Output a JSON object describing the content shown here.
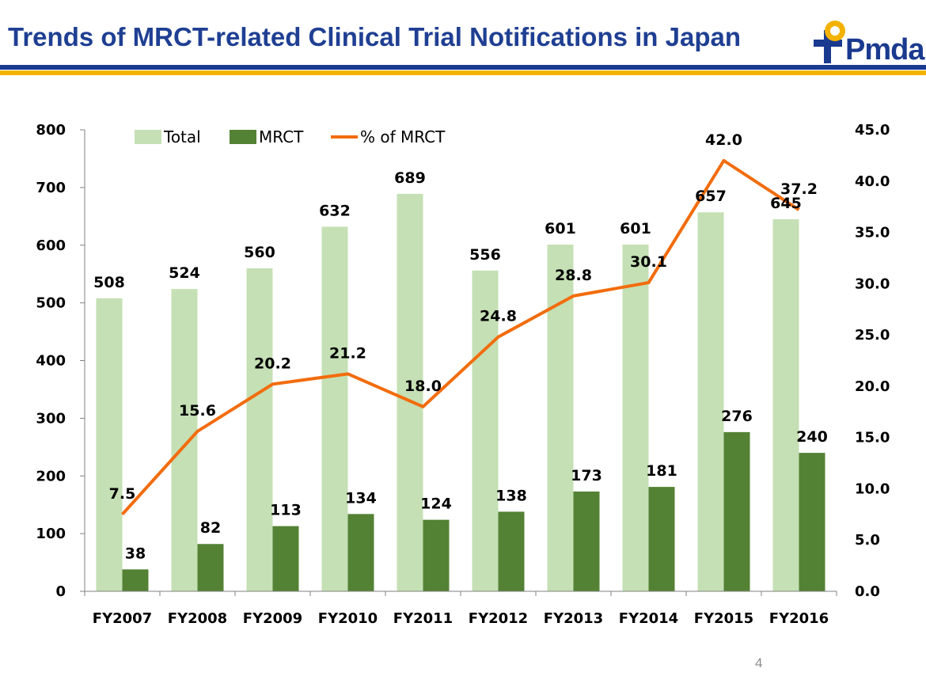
{
  "slide": {
    "title": "Trends of MRCT-related Clinical Trial Notifications in Japan",
    "page_number": "4",
    "logo_text": "Pmda"
  },
  "colors": {
    "title": "#1f3f93",
    "rule_blue": "#1a3a8f",
    "rule_yellow": "#f4b200",
    "total": "#c5e0b4",
    "mrct": "#548235",
    "pct": "#f26c0d"
  },
  "chart_data": {
    "type": "bar",
    "categories": [
      "FY2007",
      "FY2008",
      "FY2009",
      "FY2010",
      "FY2011",
      "FY2012",
      "FY2013",
      "FY2014",
      "FY2015",
      "FY2016"
    ],
    "series": [
      {
        "name": "Total",
        "type": "bar",
        "axis": "left",
        "values": [
          508,
          524,
          560,
          632,
          689,
          556,
          601,
          601,
          657,
          645
        ]
      },
      {
        "name": "MRCT",
        "type": "bar",
        "axis": "left",
        "values": [
          38,
          82,
          113,
          134,
          124,
          138,
          173,
          181,
          276,
          240
        ]
      },
      {
        "name": "% of MRCT",
        "type": "line",
        "axis": "right",
        "values": [
          7.5,
          15.6,
          20.2,
          21.2,
          18.0,
          24.8,
          28.8,
          30.1,
          42.0,
          37.2
        ]
      }
    ],
    "left_axis": {
      "min": 0,
      "max": 800,
      "ticks": [
        "0",
        "100",
        "200",
        "300",
        "400",
        "500",
        "600",
        "700",
        "800"
      ]
    },
    "right_axis": {
      "min": 0,
      "max": 45,
      "ticks": [
        "0.0",
        "5.0",
        "10.0",
        "15.0",
        "20.0",
        "25.0",
        "30.0",
        "35.0",
        "40.0",
        "45.0"
      ]
    },
    "legend_position": "top-left",
    "grid": false
  }
}
